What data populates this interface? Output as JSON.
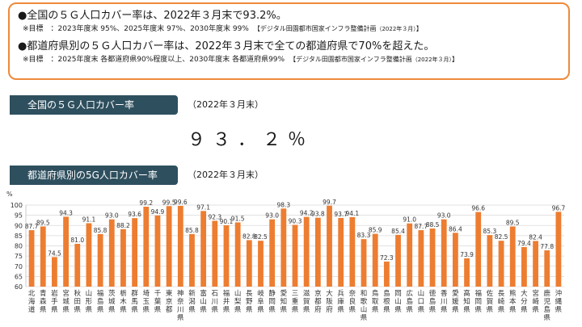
{
  "summary": {
    "point1": "●全国の５Ｇ人口カバー率は、2022年３月末で93.2%。",
    "note1": "※目標　：2023年度末 95%、2025年度末 97%、2030年度末 99%",
    "note1_src": "【デジタル田園都市国家インフラ整備計画",
    "note1_src_year": "（2022年３月）",
    "note1_src_end": "】",
    "point2": "●都道府県別の５Ｇ人口カバー率は、2022年３月末で全ての都道府県で70%を超えた。",
    "note2": "※目標　：2025年度末 各都道府県90%程度以上、2030年度末 各都道府県99%",
    "note2_src": "【デジタル田園都市国家インフラ整備計画",
    "note2_src_year": "（2022年３月）",
    "note2_src_end": "】"
  },
  "national": {
    "banner": "全国の５Ｇ人口カバー率",
    "date": "（2022年３月末）",
    "value": "９３．２％"
  },
  "prefectural": {
    "banner": "都道府県別の5G人口カバー率",
    "date": "（2022年３月末）"
  },
  "colors": {
    "bar": "#ed7d31",
    "banner": "#2e4f5e",
    "box_border": "#ee8a3a",
    "grid": "#d9d9d9"
  },
  "chart_data": {
    "type": "bar",
    "unit_label": "%",
    "ylim": [
      60,
      100
    ],
    "yticks": [
      60,
      65,
      70,
      75,
      80,
      85,
      90,
      95,
      100
    ],
    "grid": true,
    "categories": [
      "北海道",
      "青森県",
      "岩手県",
      "宮城県",
      "秋田県",
      "山形県",
      "福島県",
      "茨城県",
      "栃木県",
      "群馬県",
      "埼玉県",
      "千葉県",
      "東京都",
      "神奈川県",
      "新潟県",
      "富山県",
      "石川県",
      "福井県",
      "山梨県",
      "長野県",
      "岐阜県",
      "静岡県",
      "愛知県",
      "三重県",
      "滋賀県",
      "京都府",
      "大阪府",
      "兵庫県",
      "奈良県",
      "和歌山県",
      "鳥取県",
      "島根県",
      "岡山県",
      "広島県",
      "山口県",
      "徳島県",
      "香川県",
      "愛媛県",
      "高知県",
      "福岡県",
      "佐賀県",
      "長崎県",
      "熊本県",
      "大分県",
      "宮崎県",
      "鹿児島県",
      "沖縄県"
    ],
    "values": [
      87.7,
      89.5,
      74.5,
      94.3,
      81.0,
      91.1,
      85.8,
      93.0,
      88.2,
      93.6,
      99.2,
      94.9,
      99.5,
      99.6,
      85.8,
      97.1,
      92.3,
      90.1,
      91.5,
      82.8,
      82.5,
      93.0,
      98.3,
      90.3,
      94.2,
      93.8,
      99.7,
      93.7,
      94.1,
      83.3,
      85.9,
      72.3,
      85.4,
      91.0,
      87.7,
      88.5,
      93.0,
      86.4,
      73.9,
      96.6,
      85.3,
      82.5,
      89.5,
      79.4,
      82.4,
      77.8,
      96.7
    ]
  }
}
